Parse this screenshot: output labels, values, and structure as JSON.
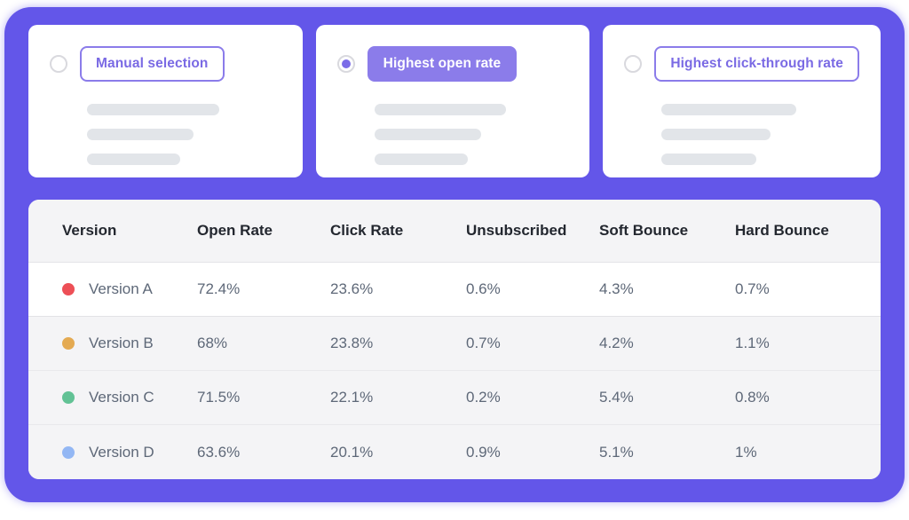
{
  "cards": [
    {
      "label": "Manual selection",
      "selected": false
    },
    {
      "label": "Highest open rate",
      "selected": true
    },
    {
      "label": "Highest click-through rate",
      "selected": false
    }
  ],
  "table": {
    "columns": [
      "Version",
      "Open Rate",
      "Click Rate",
      "Unsubscribed",
      "Soft Bounce",
      "Hard Bounce"
    ],
    "rows": [
      {
        "version": "Version A",
        "dot_color": "#ed4f56",
        "open_rate": "72.4%",
        "click_rate": "23.6%",
        "unsubscribed": "0.6%",
        "soft_bounce": "4.3%",
        "hard_bounce": "0.7%",
        "highlight": true
      },
      {
        "version": "Version B",
        "dot_color": "#e4aa52",
        "open_rate": "68%",
        "click_rate": "23.8%",
        "unsubscribed": "0.7%",
        "soft_bounce": "4.2%",
        "hard_bounce": "1.1%",
        "highlight": false
      },
      {
        "version": "Version C",
        "dot_color": "#62c295",
        "open_rate": "71.5%",
        "click_rate": "22.1%",
        "unsubscribed": "0.2%",
        "soft_bounce": "5.4%",
        "hard_bounce": "0.8%",
        "highlight": false
      },
      {
        "version": "Version D",
        "dot_color": "#93b7f4",
        "open_rate": "63.6%",
        "click_rate": "20.1%",
        "unsubscribed": "0.9%",
        "soft_bounce": "5.1%",
        "hard_bounce": "1%",
        "highlight": false
      }
    ]
  },
  "colors": {
    "panel_purple": "#6356e9",
    "accent_purple": "#8b7cea",
    "accent_text": "#7a6ae4"
  }
}
